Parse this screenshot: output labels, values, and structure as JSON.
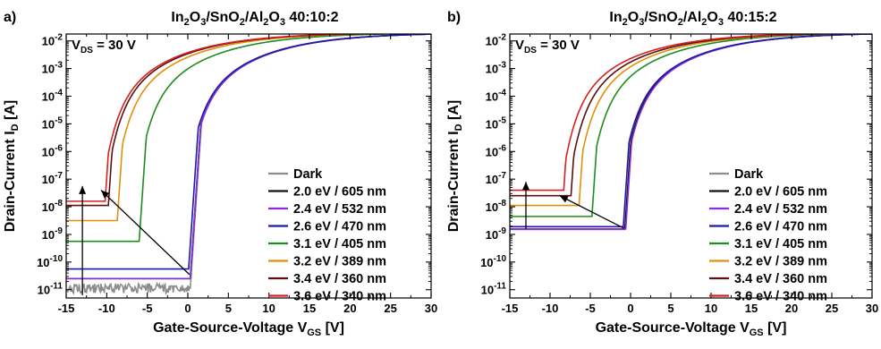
{
  "chart_data": [
    {
      "type": "line",
      "panel_label": "a)",
      "title": {
        "base": "In",
        "parts": [
          [
            "In",
            "2"
          ],
          [
            "O",
            "3"
          ],
          [
            "/SnO",
            ""
          ],
          [
            "",
            "2"
          ],
          [
            "/Al",
            ""
          ],
          [
            "",
            "2"
          ],
          [
            "O",
            "3"
          ]
        ],
        "text": "In2O3/SnO2/Al2O3 40:10:2",
        "ratio": "40:10:2"
      },
      "annotation": {
        "main": "V",
        "sub": "DS",
        "rest": " = 30 V"
      },
      "xlabel": {
        "main": "Gate-Source-Voltage V",
        "sub": "GS",
        "rest": " [V]"
      },
      "ylabel": {
        "main": "Drain-Current I",
        "sub": "D",
        "rest": " [A]"
      },
      "xlim": [
        -15,
        30
      ],
      "ylim_log10": [
        -11.3,
        -1.75
      ],
      "yscale": "log",
      "xticks": [
        "-15",
        "-10",
        "-5",
        "0",
        "5",
        "10",
        "15",
        "20",
        "25",
        "30"
      ],
      "yticks": [
        {
          "base": "10",
          "exp": "-2"
        },
        {
          "base": "10",
          "exp": "-3"
        },
        {
          "base": "10",
          "exp": "-4"
        },
        {
          "base": "10",
          "exp": "-5"
        },
        {
          "base": "10",
          "exp": "-6"
        },
        {
          "base": "10",
          "exp": "-7"
        },
        {
          "base": "10",
          "exp": "-8"
        },
        {
          "base": "10",
          "exp": "-9"
        },
        {
          "base": "10",
          "exp": "-10"
        },
        {
          "base": "10",
          "exp": "-11"
        }
      ],
      "legend_position": "bottom-right",
      "series": [
        {
          "name": "Dark",
          "color": "#8c8c8c",
          "off": -10.95,
          "von": 0.3,
          "noise": true
        },
        {
          "name": "2.0 eV / 605 nm",
          "color": "#111111",
          "off": -10.6,
          "von": 0.3
        },
        {
          "name": "2.4 eV / 532 nm",
          "color": "#8a2be2",
          "off": -10.6,
          "von": 0.3
        },
        {
          "name": "2.6 eV / 470 nm",
          "color": "#1a1aa6",
          "off": -10.25,
          "von": 0.1
        },
        {
          "name": "3.1 eV / 405 nm",
          "color": "#1e8c1e",
          "off": -9.25,
          "von": -6.0
        },
        {
          "name": "3.2 eV / 389 nm",
          "color": "#e0900a",
          "off": -8.5,
          "von": -8.7
        },
        {
          "name": "3.4 eV / 360 nm",
          "color": "#5a1010",
          "off": -7.95,
          "von": -9.8
        },
        {
          "name": "3.6 eV / 340 nm",
          "color": "#d62020",
          "off": -7.8,
          "von": -10.2
        }
      ],
      "arrows": [
        {
          "x1": -13.0,
          "y1": -11.2,
          "x2": -13.0,
          "y2": -7.25
        },
        {
          "x1": 0.2,
          "y1": -10.45,
          "x2": -10.7,
          "y2": -7.4
        }
      ]
    },
    {
      "type": "line",
      "panel_label": "b)",
      "title": {
        "parts": [
          [
            "In",
            "2"
          ],
          [
            "O",
            "3"
          ],
          [
            "/SnO",
            ""
          ],
          [
            "",
            "2"
          ],
          [
            "/Al",
            ""
          ],
          [
            "",
            "2"
          ],
          [
            "O",
            "3"
          ]
        ],
        "text": "In2O3/SnO2/Al2O3 40:15:2",
        "ratio": "40:15:2"
      },
      "annotation": {
        "main": "V",
        "sub": "DS",
        "rest": " = 30 V"
      },
      "xlabel": {
        "main": "Gate-Source-Voltage V",
        "sub": "GS",
        "rest": " [V]"
      },
      "ylabel": {
        "main": "Drain-Current I",
        "sub": "D",
        "rest": " [A]"
      },
      "xlim": [
        -15,
        30
      ],
      "ylim_log10": [
        -11.3,
        -1.75
      ],
      "yscale": "log",
      "xticks": [
        "-15",
        "-10",
        "-5",
        "0",
        "5",
        "10",
        "15",
        "20",
        "25",
        "30"
      ],
      "yticks": [
        {
          "base": "10",
          "exp": "-2"
        },
        {
          "base": "10",
          "exp": "-3"
        },
        {
          "base": "10",
          "exp": "-4"
        },
        {
          "base": "10",
          "exp": "-5"
        },
        {
          "base": "10",
          "exp": "-6"
        },
        {
          "base": "10",
          "exp": "-7"
        },
        {
          "base": "10",
          "exp": "-8"
        },
        {
          "base": "10",
          "exp": "-9"
        },
        {
          "base": "10",
          "exp": "-10"
        },
        {
          "base": "10",
          "exp": "-11"
        }
      ],
      "legend_position": "bottom-right",
      "series": [
        {
          "name": "Dark",
          "color": "#8c8c8c",
          "off": -8.82,
          "von": -0.7
        },
        {
          "name": "2.0 eV / 605 nm",
          "color": "#111111",
          "off": -8.8,
          "von": -0.7
        },
        {
          "name": "2.4 eV / 532 nm",
          "color": "#8a2be2",
          "off": -8.8,
          "von": -0.6
        },
        {
          "name": "2.6 eV / 470 nm",
          "color": "#1a1aa6",
          "off": -8.72,
          "von": -0.9
        },
        {
          "name": "3.1 eV / 405 nm",
          "color": "#1e8c1e",
          "off": -8.35,
          "von": -4.8
        },
        {
          "name": "3.2 eV / 389 nm",
          "color": "#e0900a",
          "off": -7.95,
          "von": -6.4
        },
        {
          "name": "3.4 eV / 360 nm",
          "color": "#5a1010",
          "off": -7.6,
          "von": -7.4
        },
        {
          "name": "3.6 eV / 340 nm",
          "color": "#d62020",
          "off": -7.4,
          "von": -8.3
        }
      ],
      "arrows": [
        {
          "x1": -13.0,
          "y1": -8.8,
          "x2": -13.0,
          "y2": -7.1
        },
        {
          "x1": -0.8,
          "y1": -8.78,
          "x2": -8.8,
          "y2": -7.6
        }
      ]
    }
  ]
}
